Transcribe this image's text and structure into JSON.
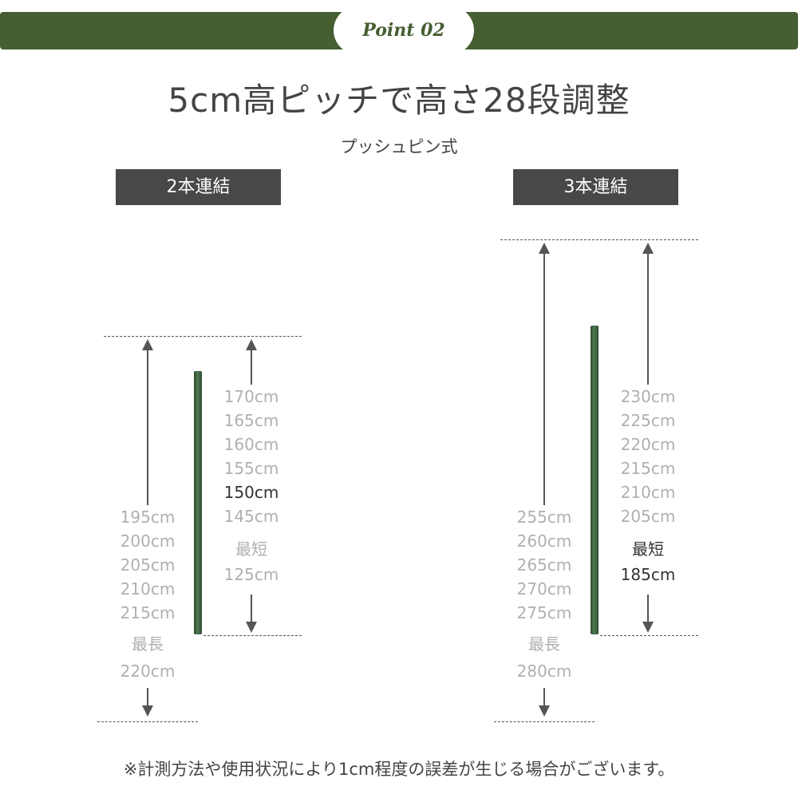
{
  "banner": {
    "point_label": "Point 02",
    "color": "#465e32"
  },
  "title": "5cm高ピッチで高さ28段調整",
  "subtitle": "プッシュピン式",
  "left": {
    "tag": "2本連結",
    "long_side": [
      "195cm",
      "200cm",
      "205cm",
      "210cm",
      "215cm"
    ],
    "longest_label": "最長",
    "longest_value": "220cm",
    "short_side": [
      "170cm",
      "165cm",
      "160cm",
      "155cm",
      "150cm",
      "145cm"
    ],
    "highlighted": "150cm",
    "shortest_label": "最短",
    "shortest_value": "125cm"
  },
  "right": {
    "tag": "3本連結",
    "long_side": [
      "255cm",
      "260cm",
      "265cm",
      "270cm",
      "275cm"
    ],
    "longest_label": "最長",
    "longest_value": "280cm",
    "short_side": [
      "230cm",
      "225cm",
      "220cm",
      "215cm",
      "210cm",
      "205cm"
    ],
    "shortest_label": "最短",
    "shortest_value": "185cm"
  },
  "footnote": "※計測方法や使用状況により1cm程度の誤差が生じる場合がございます。"
}
